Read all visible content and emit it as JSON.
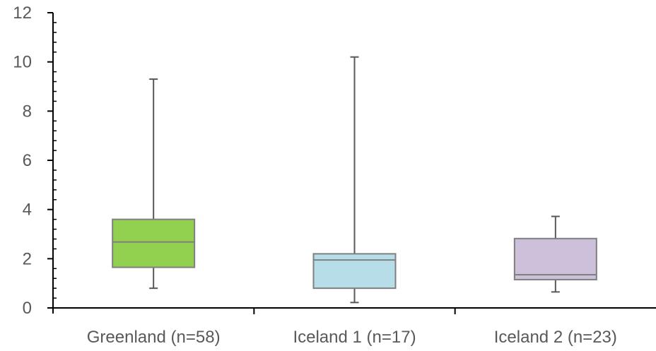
{
  "chart_data": {
    "type": "box",
    "title": "",
    "xlabel": "",
    "ylabel": "",
    "ylim": [
      0,
      12
    ],
    "yticks": [
      0,
      2,
      4,
      6,
      8,
      10,
      12
    ],
    "y_tick_labels": [
      "0",
      "2",
      "4",
      "6",
      "8",
      "10",
      "12"
    ],
    "minor_ticks_per_major": 4,
    "grid": false,
    "categories": [
      "Greenland (n=58)",
      "Iceland 1 (n=17)",
      "Iceland 2 (n=23)"
    ],
    "boxes": [
      {
        "min": 0.8,
        "q1": 1.65,
        "median": 2.68,
        "q3": 3.6,
        "max": 9.3,
        "color": "#92D050"
      },
      {
        "min": 0.22,
        "q1": 0.8,
        "median": 1.95,
        "q3": 2.2,
        "max": 10.2,
        "color": "#B7DEE8"
      },
      {
        "min": 0.65,
        "q1": 1.15,
        "median": 1.35,
        "q3": 2.82,
        "max": 3.72,
        "color": "#CCC0DA"
      }
    ],
    "line_color": "#7F7F7F",
    "whisker_color": "#595959",
    "axis_color": "#000000"
  }
}
